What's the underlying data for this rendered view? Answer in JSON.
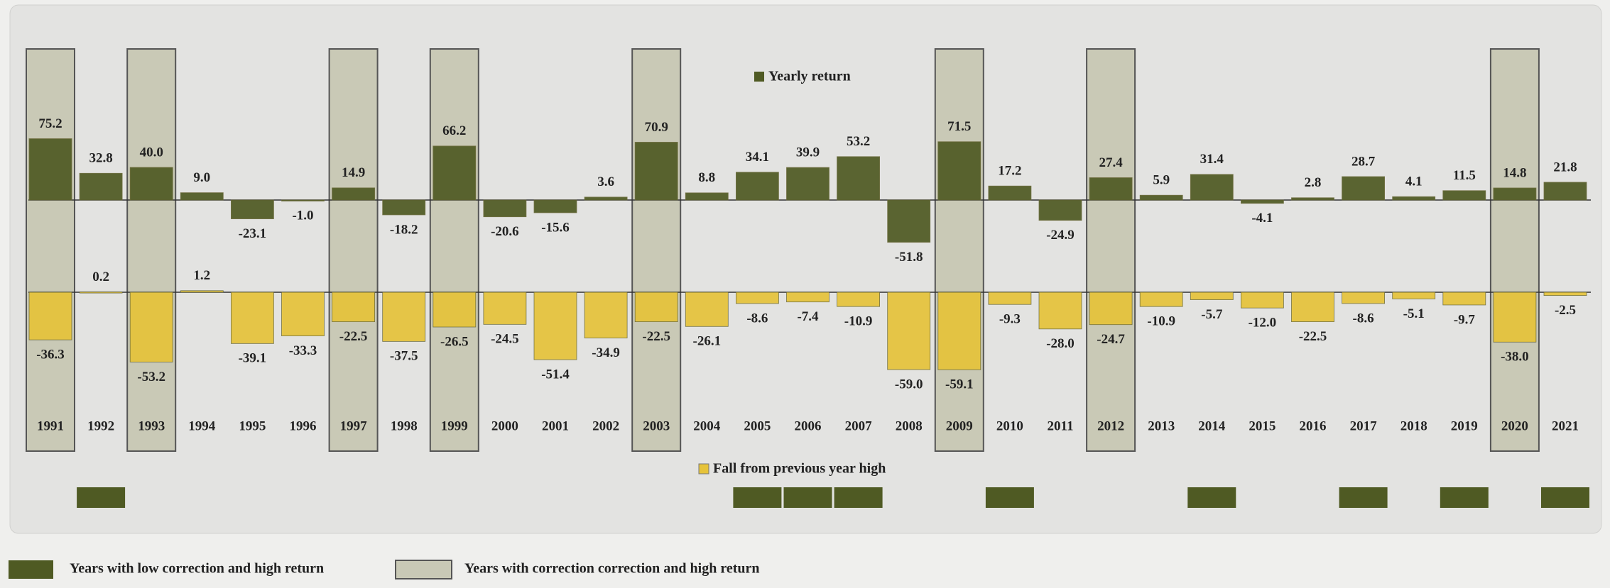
{
  "chart_data": {
    "type": "bar",
    "categories": [
      "1991",
      "1992",
      "1993",
      "1994",
      "1995",
      "1996",
      "1997",
      "1998",
      "1999",
      "2000",
      "2001",
      "2002",
      "2003",
      "2004",
      "2005",
      "2006",
      "2007",
      "2008",
      "2009",
      "2010",
      "2011",
      "2012",
      "2013",
      "2014",
      "2015",
      "2016",
      "2017",
      "2018",
      "2019",
      "2020",
      "2021"
    ],
    "series": [
      {
        "name": "Yearly return",
        "color": "#4f5a23",
        "values": [
          75.2,
          32.8,
          40.0,
          9.0,
          -23.1,
          -1.0,
          14.9,
          -18.2,
          66.2,
          -20.6,
          -15.6,
          3.6,
          70.9,
          8.8,
          34.1,
          39.9,
          53.2,
          -51.8,
          71.5,
          17.2,
          -24.9,
          27.4,
          5.9,
          31.4,
          -4.1,
          2.8,
          28.7,
          4.1,
          11.5,
          14.8,
          21.8
        ],
        "value_labels": [
          "75.2",
          "32.8",
          "40.0",
          "9.0",
          "-23.1",
          "-1.0",
          "14.9",
          "-18.2",
          "66.2",
          "-20.6",
          "-15.6",
          "3.6",
          "70.9",
          "8.8",
          "34.1",
          "39.9",
          "53.2",
          "-51.8",
          "71.5",
          "17.2",
          "-24.9",
          "27.4",
          "5.9",
          "31.4",
          "-4.1",
          "2.8",
          "28.7",
          "4.1",
          "11.5",
          "14.8",
          "21.8"
        ]
      },
      {
        "name": "Fall from previous year high",
        "color": "#e6c33a",
        "values": [
          -36.3,
          0.2,
          -53.2,
          1.2,
          -39.1,
          -33.3,
          -22.5,
          -37.5,
          -26.5,
          -24.5,
          -51.4,
          -34.9,
          -22.5,
          -26.1,
          -8.6,
          -7.4,
          -10.9,
          -59.0,
          -59.1,
          -9.3,
          -28.0,
          -24.7,
          -10.9,
          -5.7,
          -12.0,
          -22.5,
          -8.6,
          -5.1,
          -9.7,
          -38.0,
          -2.5
        ],
        "value_labels": [
          "-36.3",
          "0.2",
          "-53.2",
          "1.2",
          "-39.1",
          "-33.3",
          "-22.5",
          "-37.5",
          "-26.5",
          "-24.5",
          "-51.4",
          "-34.9",
          "-22.5",
          "-26.1",
          "-8.6",
          "-7.4",
          "-10.9",
          "-59.0",
          "-59.1",
          "-9.3",
          "-28.0",
          "-24.7",
          "-10.9",
          "-5.7",
          "-12.0",
          "-22.5",
          "-8.6",
          "-5.1",
          "-9.7",
          "-38.0",
          "-2.5"
        ]
      }
    ],
    "highlight_correction": {
      "label": "Years with correction correction and high return",
      "color": "#c9c9b6",
      "years": [
        "1991",
        "1993",
        "1997",
        "1999",
        "2003",
        "2009",
        "2012",
        "2020"
      ]
    },
    "highlight_low": {
      "label": "Years with low correction and high return",
      "color": "#4f5a23",
      "years": [
        "1992",
        "2005",
        "2006",
        "2007",
        "2010",
        "2014",
        "2017",
        "2019",
        "2021"
      ]
    }
  }
}
